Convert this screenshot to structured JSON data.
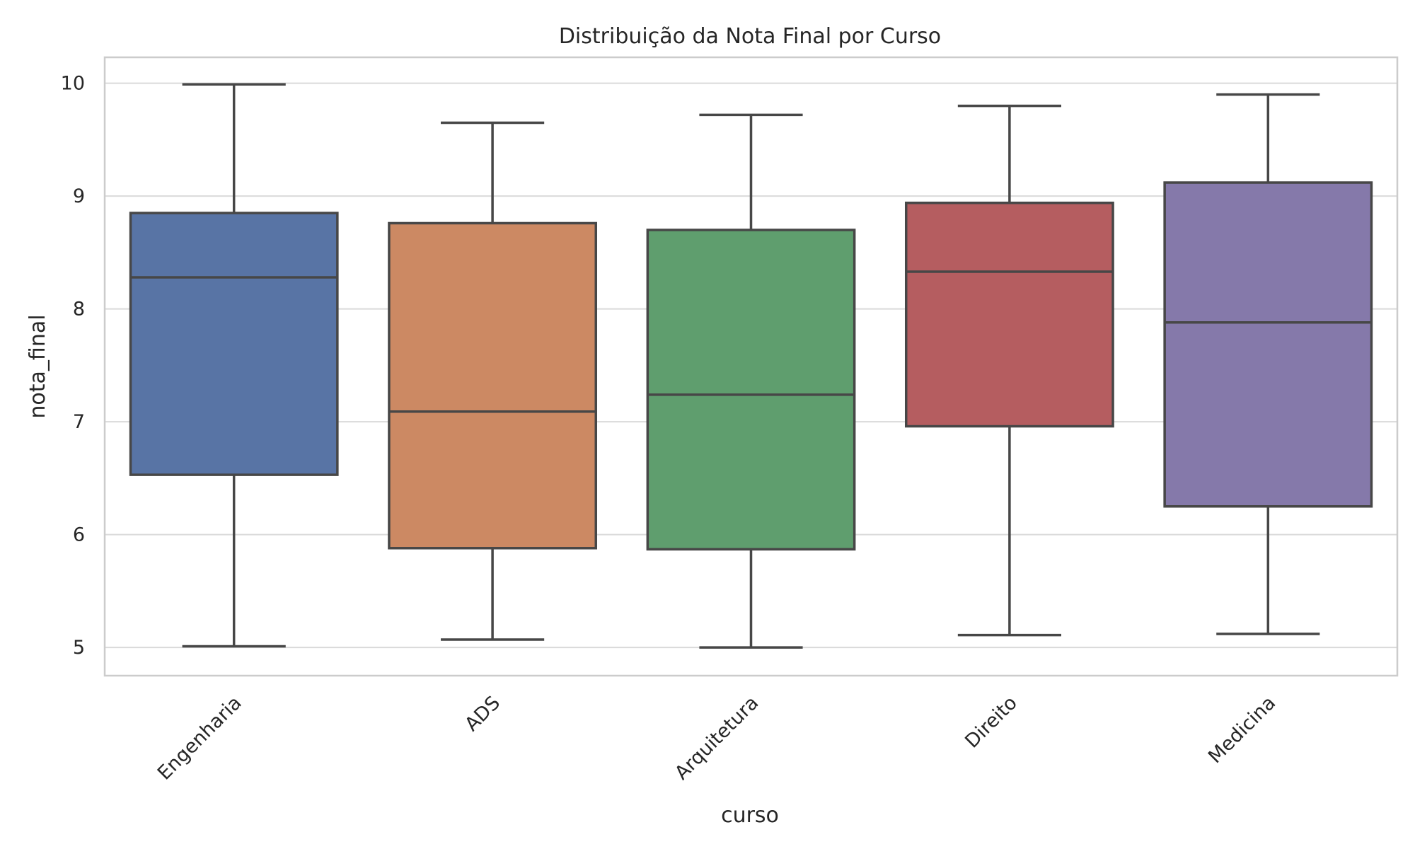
{
  "chart_data": {
    "type": "box",
    "title": "Distribuição da Nota Final por Curso",
    "xlabel": "curso",
    "ylabel": "nota_final",
    "ylim": [
      4.75,
      10.23
    ],
    "yticks": [
      "5",
      "6",
      "7",
      "8",
      "9",
      "10"
    ],
    "grid": true,
    "legend": "none",
    "categories": [
      "Engenharia",
      "ADS",
      "Arquitetura",
      "Direito",
      "Medicina"
    ],
    "colors": [
      "#5874a5",
      "#cc8963",
      "#5f9e6e",
      "#b55d60",
      "#8579aa"
    ],
    "boxes": [
      {
        "min": 5.01,
        "q1": 6.53,
        "median": 8.28,
        "q3": 8.85,
        "max": 9.99
      },
      {
        "min": 5.07,
        "q1": 5.88,
        "median": 7.09,
        "q3": 8.76,
        "max": 9.65
      },
      {
        "min": 5.0,
        "q1": 5.87,
        "median": 7.24,
        "q3": 8.7,
        "max": 9.72
      },
      {
        "min": 5.11,
        "q1": 6.96,
        "median": 8.33,
        "q3": 8.94,
        "max": 9.8
      },
      {
        "min": 5.12,
        "q1": 6.25,
        "median": 7.88,
        "q3": 9.12,
        "max": 9.9
      }
    ]
  }
}
